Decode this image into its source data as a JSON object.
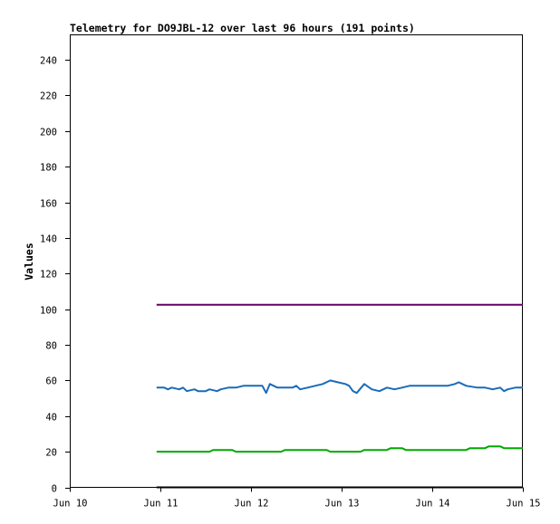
{
  "chart_data": {
    "type": "line",
    "title": "Telemetry for DO9JBL-12 over last 96 hours (191 points)",
    "xlabel": "",
    "ylabel": "Values",
    "x_ticks": [
      "Jun 10",
      "Jun 11",
      "Jun 12",
      "Jun 13",
      "Jun 14",
      "Jun 15"
    ],
    "xlim": [
      "Jun 10",
      "Jun 15"
    ],
    "y_ticks": [
      0,
      20,
      40,
      60,
      80,
      100,
      120,
      140,
      160,
      180,
      200,
      220,
      240
    ],
    "ylim": [
      0,
      254
    ],
    "grid": false,
    "legend": "none",
    "series": [
      {
        "color": "#660066",
        "x": [
          "Jun 10 23:00",
          "Jun 14 23:59"
        ],
        "values": [
          102.5,
          102.5
        ]
      },
      {
        "color": "#1a6bb8",
        "x": [
          "Jun 10 23:00",
          "Jun 11 01:00",
          "Jun 11 02:00",
          "Jun 11 03:00",
          "Jun 11 05:00",
          "Jun 11 06:00",
          "Jun 11 07:00",
          "Jun 11 09:00",
          "Jun 11 10:00",
          "Jun 11 12:00",
          "Jun 11 13:00",
          "Jun 11 15:00",
          "Jun 11 16:00",
          "Jun 11 18:00",
          "Jun 11 20:00",
          "Jun 11 22:00",
          "Jun 12 00:00",
          "Jun 12 03:00",
          "Jun 12 04:00",
          "Jun 12 05:00",
          "Jun 12 07:00",
          "Jun 12 09:00",
          "Jun 12 11:00",
          "Jun 12 12:00",
          "Jun 12 13:00",
          "Jun 12 15:00",
          "Jun 12 17:00",
          "Jun 12 19:00",
          "Jun 12 21:00",
          "Jun 12 23:00",
          "Jun 13 01:00",
          "Jun 13 02:00",
          "Jun 13 03:00",
          "Jun 13 04:00",
          "Jun 13 06:00",
          "Jun 13 08:00",
          "Jun 13 10:00",
          "Jun 13 12:00",
          "Jun 13 14:00",
          "Jun 13 16:00",
          "Jun 13 18:00",
          "Jun 13 21:00",
          "Jun 14 00:00",
          "Jun 14 04:00",
          "Jun 14 06:00",
          "Jun 14 07:00",
          "Jun 14 09:00",
          "Jun 14 12:00",
          "Jun 14 14:00",
          "Jun 14 16:00",
          "Jun 14 18:00",
          "Jun 14 19:00",
          "Jun 14 20:00",
          "Jun 14 22:00",
          "Jun 14 23:59"
        ],
        "values": [
          56,
          56,
          55,
          56,
          55,
          56,
          54,
          55,
          54,
          54,
          55,
          54,
          55,
          56,
          56,
          57,
          57,
          57,
          53,
          58,
          56,
          56,
          56,
          57,
          55,
          56,
          57,
          58,
          60,
          59,
          58,
          57,
          54,
          53,
          58,
          55,
          54,
          56,
          55,
          56,
          57,
          57,
          57,
          57,
          58,
          59,
          57,
          56,
          56,
          55,
          56,
          54,
          55,
          56,
          56
        ]
      },
      {
        "color": "#00aa00",
        "x": [
          "Jun 10 23:00",
          "Jun 11 13:00",
          "Jun 11 14:00",
          "Jun 11 19:00",
          "Jun 11 20:00",
          "Jun 12 08:00",
          "Jun 12 09:00",
          "Jun 12 20:00",
          "Jun 12 21:00",
          "Jun 13 05:00",
          "Jun 13 06:00",
          "Jun 13 12:00",
          "Jun 13 13:00",
          "Jun 13 16:00",
          "Jun 13 17:00",
          "Jun 14 09:00",
          "Jun 14 10:00",
          "Jun 14 14:00",
          "Jun 14 15:00",
          "Jun 14 18:00",
          "Jun 14 19:00",
          "Jun 14 23:59"
        ],
        "values": [
          20,
          20,
          21,
          21,
          20,
          20,
          21,
          21,
          20,
          20,
          21,
          21,
          22,
          22,
          21,
          21,
          22,
          22,
          23,
          23,
          22,
          22
        ]
      },
      {
        "color": "#000000",
        "x": [
          "Jun 10 23:00",
          "Jun 14 23:59"
        ],
        "values": [
          0,
          0
        ]
      }
    ]
  }
}
